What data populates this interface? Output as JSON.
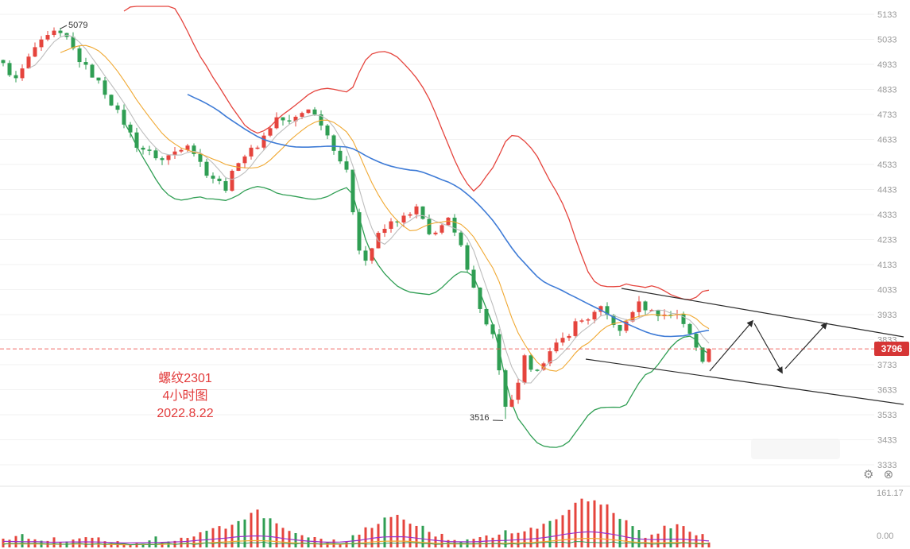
{
  "chart_data": {
    "type": "candlestick",
    "title": "螺纹2301 4小时图",
    "instrument": "螺纹2301",
    "timeframe": "4小时图",
    "date": "2022.8.22",
    "y_axis": {
      "min": 3333,
      "max": 5133,
      "step": 100,
      "grid": true,
      "labels": [
        "5133",
        "5033",
        "4933",
        "4833",
        "4733",
        "4633",
        "4533",
        "4433",
        "4333",
        "4233",
        "4133",
        "4033",
        "3933",
        "3833",
        "3733",
        "3633",
        "3533",
        "3433",
        "3333"
      ]
    },
    "current_price": "3796",
    "price_line": 3796,
    "high_annotation": {
      "label": "5079",
      "candle_index": 9,
      "price": 5079
    },
    "low_annotation": {
      "label": "3516",
      "candle_index": 79,
      "price": 3516
    },
    "candle_count": 112,
    "close_anchors": [
      [
        0,
        4930
      ],
      [
        2,
        4870
      ],
      [
        5,
        5000
      ],
      [
        9,
        5079
      ],
      [
        12,
        4950
      ],
      [
        15,
        4860
      ],
      [
        19,
        4700
      ],
      [
        21,
        4610
      ],
      [
        25,
        4550
      ],
      [
        29,
        4620
      ],
      [
        32,
        4500
      ],
      [
        35,
        4440
      ],
      [
        37,
        4550
      ],
      [
        40,
        4610
      ],
      [
        43,
        4720
      ],
      [
        45,
        4700
      ],
      [
        48,
        4760
      ],
      [
        50,
        4700
      ],
      [
        51,
        4650
      ],
      [
        54,
        4500
      ],
      [
        56,
        4200
      ],
      [
        57,
        4150
      ],
      [
        59,
        4250
      ],
      [
        61,
        4300
      ],
      [
        64,
        4330
      ],
      [
        65,
        4360
      ],
      [
        67,
        4250
      ],
      [
        70,
        4310
      ],
      [
        72,
        4200
      ],
      [
        74,
        4050
      ],
      [
        75,
        3950
      ],
      [
        77,
        3850
      ],
      [
        78,
        3700
      ],
      [
        79,
        3545
      ],
      [
        81,
        3650
      ],
      [
        82,
        3760
      ],
      [
        83,
        3700
      ],
      [
        85,
        3750
      ],
      [
        87,
        3810
      ],
      [
        89,
        3860
      ],
      [
        90,
        3900
      ],
      [
        92,
        3920
      ],
      [
        94,
        3955
      ],
      [
        96,
        3900
      ],
      [
        97,
        3860
      ],
      [
        99,
        3950
      ],
      [
        100,
        3975
      ],
      [
        102,
        3945
      ],
      [
        104,
        3930
      ],
      [
        106,
        3940
      ],
      [
        107,
        3900
      ],
      [
        108,
        3850
      ],
      [
        109,
        3800
      ],
      [
        110,
        3750
      ],
      [
        111,
        3796
      ]
    ],
    "overlays": [
      {
        "name": "ma-fast",
        "window": 5,
        "color": "#bdbdbd"
      },
      {
        "name": "ma-mid",
        "window": 10,
        "color": "#f0a831"
      },
      {
        "name": "ma-slow",
        "window": 30,
        "color": "#3e7bd6"
      },
      {
        "name": "boll-upper",
        "window": 20,
        "k": 2.1,
        "color": "#e5443d"
      },
      {
        "name": "boll-lower",
        "window": 20,
        "k": 2.1,
        "color": "#2f9e53"
      }
    ],
    "indicator_panel": {
      "top_label": "161.17",
      "bottom_label": "0.00",
      "bar_anchors": [
        [
          0,
          10
        ],
        [
          3,
          16
        ],
        [
          6,
          12
        ],
        [
          9,
          8
        ],
        [
          12,
          14
        ],
        [
          15,
          10
        ],
        [
          18,
          8
        ],
        [
          21,
          6
        ],
        [
          24,
          10
        ],
        [
          27,
          8
        ],
        [
          30,
          14
        ],
        [
          33,
          22
        ],
        [
          36,
          30
        ],
        [
          38,
          38
        ],
        [
          40,
          44
        ],
        [
          42,
          34
        ],
        [
          44,
          22
        ],
        [
          47,
          12
        ],
        [
          50,
          8
        ],
        [
          53,
          6
        ],
        [
          56,
          18
        ],
        [
          58,
          26
        ],
        [
          60,
          34
        ],
        [
          62,
          38
        ],
        [
          64,
          32
        ],
        [
          66,
          24
        ],
        [
          68,
          16
        ],
        [
          71,
          10
        ],
        [
          74,
          8
        ],
        [
          77,
          14
        ],
        [
          79,
          20
        ],
        [
          81,
          16
        ],
        [
          83,
          22
        ],
        [
          85,
          28
        ],
        [
          87,
          38
        ],
        [
          89,
          48
        ],
        [
          91,
          58
        ],
        [
          93,
          62
        ],
        [
          95,
          52
        ],
        [
          97,
          38
        ],
        [
          99,
          24
        ],
        [
          101,
          14
        ],
        [
          103,
          20
        ],
        [
          105,
          28
        ],
        [
          107,
          30
        ],
        [
          108,
          22
        ],
        [
          110,
          14
        ],
        [
          111,
          10
        ]
      ],
      "line_colors": {
        "purple": "#9b30c9",
        "orange": "#f0a831",
        "green": "#2f9e53"
      }
    },
    "drawings": {
      "channel_upper": [
        [
          782,
          363
        ],
        [
          1137,
          424
        ]
      ],
      "channel_lower": [
        [
          737,
          452
        ],
        [
          1137,
          509
        ]
      ],
      "zigzag_segments": [
        [
          [
            893,
            467
          ],
          [
            947,
            404
          ]
        ],
        [
          [
            949,
            407
          ],
          [
            984,
            469
          ]
        ],
        [
          [
            988,
            464
          ],
          [
            1040,
            407
          ]
        ]
      ]
    }
  },
  "colors": {
    "up": "#e5443d",
    "down": "#2f9e53",
    "grid": "#f2f2f2",
    "axis_text": "#999999",
    "badge_bg": "#d63535",
    "badge_text": "#ffffff",
    "price_line": "#ef5350",
    "annotation_text": "#333333",
    "title_text": "#e23b3b",
    "drawing": "#2b2b2b",
    "separator": "#e3e3e3",
    "icon": "#8a8a8a"
  },
  "icons": {
    "settings": "⚙",
    "close": "⊗"
  }
}
